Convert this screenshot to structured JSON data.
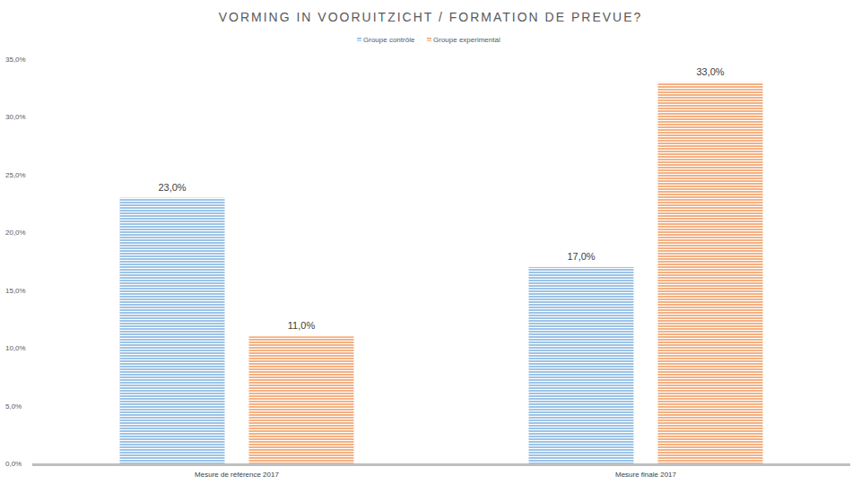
{
  "chart_data": {
    "type": "bar",
    "title": "VORMING IN VOORUITZICHT / FORMATION DE PREVUE?",
    "categories": [
      "Mesure de référence 2017",
      "Mesure finale 2017"
    ],
    "series": [
      {
        "name": "Groupe contrôle",
        "color": "#9dc3e6",
        "values": [
          23,
          17
        ],
        "value_labels": [
          "23,0%",
          "17,0%"
        ]
      },
      {
        "name": "Groupe experimental",
        "color": "#f4b183",
        "values": [
          11,
          33
        ],
        "value_labels": [
          "11,0%",
          "33,0%"
        ]
      }
    ],
    "ylim": [
      0,
      35
    ],
    "yticks": [
      {
        "value": 0,
        "label": "0,0%"
      },
      {
        "value": 5,
        "label": "5,0%"
      },
      {
        "value": 10,
        "label": "10,0%"
      },
      {
        "value": 15,
        "label": "15,0%"
      },
      {
        "value": 20,
        "label": "20,0%"
      },
      {
        "value": 25,
        "label": "25,0%"
      },
      {
        "value": 30,
        "label": "30,0%"
      },
      {
        "value": 35,
        "label": "35,0%"
      }
    ],
    "grid": false,
    "legend": "top",
    "data_labels": true
  }
}
